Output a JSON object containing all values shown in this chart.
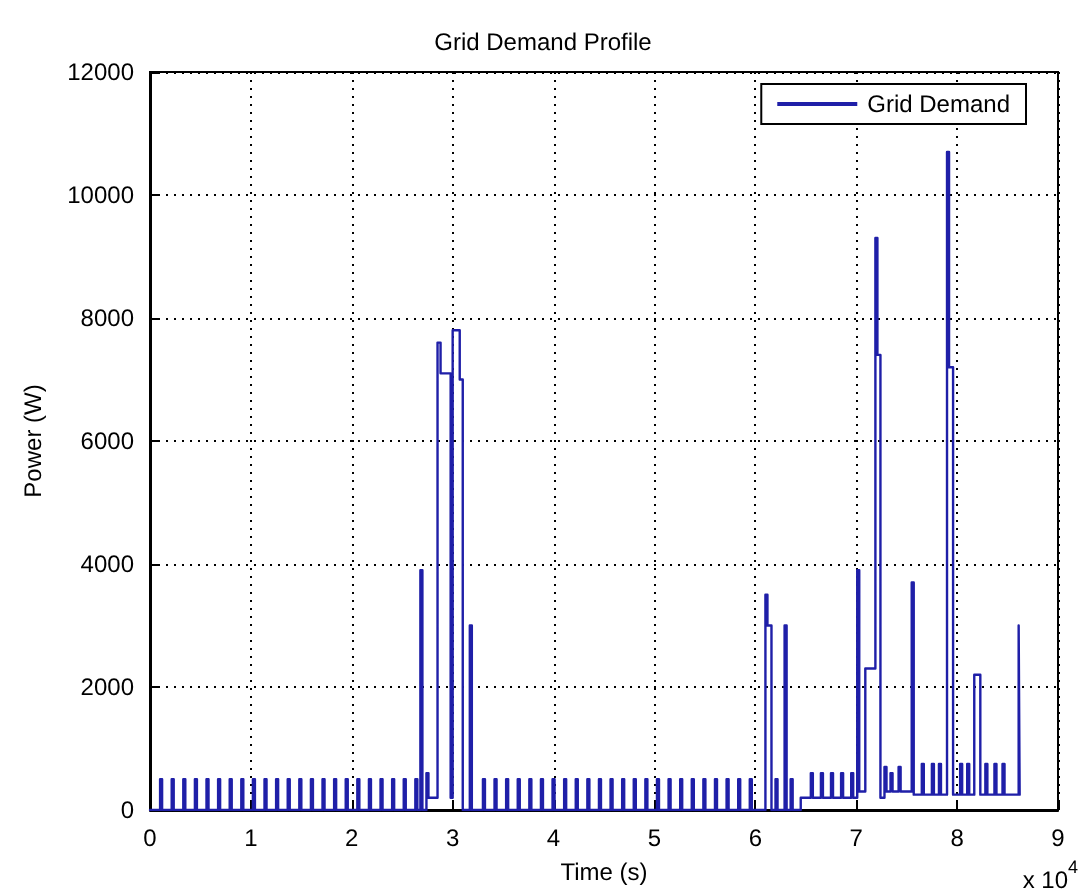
{
  "chart_data": {
    "type": "step",
    "title": "Grid Demand Profile",
    "xlabel": "Time (s)",
    "ylabel": "Power (W)",
    "annotations": [
      "x 10$^{4}$"
    ],
    "xlim": [
      0,
      9
    ],
    "ylim": [
      0,
      12000
    ],
    "xticks": [
      0,
      1,
      2,
      3,
      4,
      5,
      6,
      7,
      8,
      9
    ],
    "yticks": [
      0,
      2000,
      4000,
      6000,
      8000,
      10000,
      12000
    ],
    "grid": true,
    "legend": "top right",
    "marker": "none",
    "line_style": "solid",
    "series": [
      {
        "name": "Grid Demand",
        "color": "#1f1fa8",
        "x": [
          0,
          0.1,
          0.12,
          0.215,
          0.235,
          0.33,
          0.35,
          0.445,
          0.465,
          0.56,
          0.58,
          0.675,
          0.695,
          0.79,
          0.81,
          0.905,
          0.925,
          1.02,
          1.04,
          1.135,
          1.155,
          1.25,
          1.27,
          1.365,
          1.385,
          1.48,
          1.5,
          1.595,
          1.615,
          1.71,
          1.73,
          1.825,
          1.845,
          1.94,
          1.96,
          2.055,
          2.075,
          2.17,
          2.19,
          2.285,
          2.305,
          2.4,
          2.42,
          2.515,
          2.535,
          2.63,
          2.65,
          2.68,
          2.7,
          2.74,
          2.76,
          2.85,
          2.88,
          2.98,
          3.0,
          3.07,
          3.1,
          3.17,
          3.19,
          3.3,
          3.32,
          3.415,
          3.435,
          3.53,
          3.55,
          3.645,
          3.665,
          3.76,
          3.78,
          3.875,
          3.895,
          3.99,
          4.01,
          4.105,
          4.125,
          4.22,
          4.24,
          4.335,
          4.355,
          4.45,
          4.47,
          4.565,
          4.585,
          4.68,
          4.7,
          4.795,
          4.815,
          4.91,
          4.93,
          5.025,
          5.045,
          5.14,
          5.16,
          5.255,
          5.275,
          5.37,
          5.39,
          5.485,
          5.505,
          5.6,
          5.62,
          5.715,
          5.735,
          5.83,
          5.85,
          5.945,
          5.965,
          6.1,
          6.12,
          6.16,
          6.2,
          6.22,
          6.29,
          6.31,
          6.35,
          6.37,
          6.45,
          6.55,
          6.57,
          6.65,
          6.67,
          6.75,
          6.77,
          6.85,
          6.87,
          6.95,
          6.97,
          7.01,
          7.03,
          7.09,
          7.19,
          7.21,
          7.24,
          7.28,
          7.3,
          7.34,
          7.36,
          7.42,
          7.44,
          7.55,
          7.57,
          7.65,
          7.67,
          7.75,
          7.77,
          7.82,
          7.84,
          7.9,
          7.92,
          7.96,
          8.03,
          8.05,
          8.1,
          8.12,
          8.17,
          8.23,
          8.28,
          8.3,
          8.37,
          8.39,
          8.45,
          8.47,
          8.61,
          8.62,
          8.63
        ],
        "values": [
          0,
          500,
          0,
          500,
          0,
          500,
          0,
          500,
          0,
          500,
          0,
          500,
          0,
          500,
          0,
          500,
          0,
          500,
          0,
          500,
          0,
          500,
          0,
          500,
          0,
          500,
          0,
          500,
          0,
          500,
          0,
          500,
          0,
          500,
          0,
          500,
          0,
          500,
          0,
          500,
          0,
          500,
          0,
          500,
          0,
          500,
          0,
          3900,
          0,
          600,
          200,
          7600,
          7100,
          200,
          7800,
          7000,
          0,
          3000,
          0,
          500,
          0,
          500,
          0,
          500,
          0,
          500,
          0,
          500,
          0,
          500,
          0,
          500,
          0,
          500,
          0,
          500,
          0,
          500,
          0,
          500,
          0,
          500,
          0,
          500,
          0,
          500,
          0,
          500,
          0,
          500,
          0,
          500,
          0,
          500,
          0,
          500,
          0,
          500,
          0,
          500,
          0,
          500,
          0,
          500,
          0,
          500,
          0,
          3500,
          3000,
          0,
          500,
          0,
          3000,
          0,
          500,
          0,
          200,
          600,
          200,
          600,
          200,
          600,
          200,
          600,
          200,
          600,
          200,
          3900,
          300,
          2300,
          9300,
          7400,
          200,
          700,
          300,
          600,
          300,
          700,
          300,
          3700,
          250,
          750,
          250,
          750,
          250,
          750,
          250,
          10700,
          7200,
          250,
          750,
          250,
          750,
          250,
          2200,
          250,
          750,
          250,
          750,
          250,
          750,
          250,
          3000,
          250,
          250
        ]
      }
    ]
  }
}
